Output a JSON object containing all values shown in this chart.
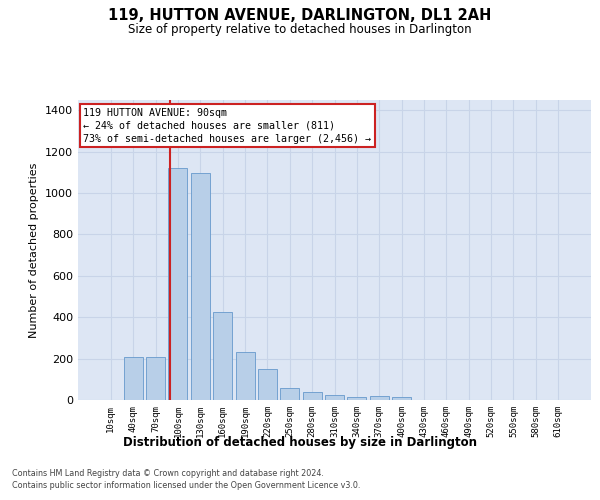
{
  "title": "119, HUTTON AVENUE, DARLINGTON, DL1 2AH",
  "subtitle": "Size of property relative to detached houses in Darlington",
  "xlabel": "Distribution of detached houses by size in Darlington",
  "ylabel": "Number of detached properties",
  "footnote1": "Contains HM Land Registry data © Crown copyright and database right 2024.",
  "footnote2": "Contains public sector information licensed under the Open Government Licence v3.0.",
  "bar_color": "#b8cfe8",
  "bar_edge_color": "#6699cc",
  "grid_color": "#c8d4e8",
  "bg_color": "#dde6f4",
  "annot_line1": "119 HUTTON AVENUE: 90sqm",
  "annot_line2": "← 24% of detached houses are smaller (811)",
  "annot_line3": "73% of semi-detached houses are larger (2,456) →",
  "annot_border": "#cc2222",
  "vline_color": "#cc2222",
  "categories": [
    "10sqm",
    "40sqm",
    "70sqm",
    "100sqm",
    "130sqm",
    "160sqm",
    "190sqm",
    "220sqm",
    "250sqm",
    "280sqm",
    "310sqm",
    "340sqm",
    "370sqm",
    "400sqm",
    "430sqm",
    "460sqm",
    "490sqm",
    "520sqm",
    "550sqm",
    "580sqm",
    "610sqm"
  ],
  "bar_values": [
    0,
    207,
    210,
    1120,
    1097,
    425,
    230,
    148,
    57,
    38,
    25,
    13,
    18,
    13,
    0,
    0,
    0,
    0,
    0,
    0,
    0
  ],
  "ylim": [
    0,
    1450
  ],
  "yticks": [
    0,
    200,
    400,
    600,
    800,
    1000,
    1200,
    1400
  ],
  "vline_x": 2.667
}
